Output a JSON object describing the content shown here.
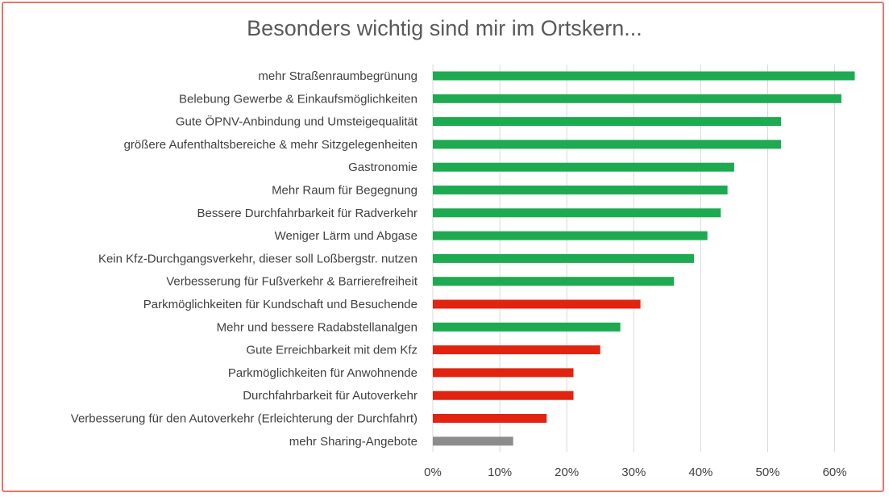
{
  "chart_data": {
    "type": "bar",
    "orientation": "horizontal",
    "title": "Besonders wichtig sind mir im Ortskern...",
    "xlabel": "",
    "ylabel": "",
    "xlim": [
      0,
      0.65
    ],
    "xticks": [
      0,
      0.1,
      0.2,
      0.3,
      0.4,
      0.5,
      0.6
    ],
    "xtick_labels": [
      "0%",
      "10%",
      "20%",
      "30%",
      "40%",
      "50%",
      "60%"
    ],
    "grid": "vertical",
    "legend": "none",
    "colors": {
      "green": "#1eaa50",
      "red": "#e0240f",
      "gray": "#8c8c8c",
      "grid": "#d9d9d9"
    },
    "categories": [
      "mehr Straßenraumbegrünung",
      "Belebung Gewerbe & Einkaufsmöglichkeiten",
      "Gute ÖPNV-Anbindung und Umsteigequalität",
      "größere Aufenthaltsbereiche & mehr Sitzgelegenheiten",
      "Gastronomie",
      "Mehr Raum für Begegnung",
      "Bessere Durchfahrbarkeit für Radverkehr",
      "Weniger Lärm und Abgase",
      "Kein Kfz-Durchgangsverkehr, dieser soll Loßbergstr. nutzen",
      "Verbesserung für Fußverkehr & Barrierefreiheit",
      "Parkmöglichkeiten für Kundschaft und Besuchende",
      "Mehr und bessere Radabstellanalgen",
      "Gute Erreichbarkeit mit dem Kfz",
      "Parkmöglichkeiten für Anwohnende",
      "Durchfahrbarkeit für Autoverkehr",
      "Verbesserung für den Autoverkehr (Erleichterung der Durchfahrt)",
      "mehr Sharing-Angebote"
    ],
    "values": [
      0.63,
      0.61,
      0.52,
      0.52,
      0.45,
      0.44,
      0.43,
      0.41,
      0.39,
      0.36,
      0.31,
      0.28,
      0.25,
      0.21,
      0.21,
      0.17,
      0.12
    ],
    "bar_colors": [
      "green",
      "green",
      "green",
      "green",
      "green",
      "green",
      "green",
      "green",
      "green",
      "green",
      "red",
      "green",
      "red",
      "red",
      "red",
      "red",
      "gray"
    ]
  }
}
